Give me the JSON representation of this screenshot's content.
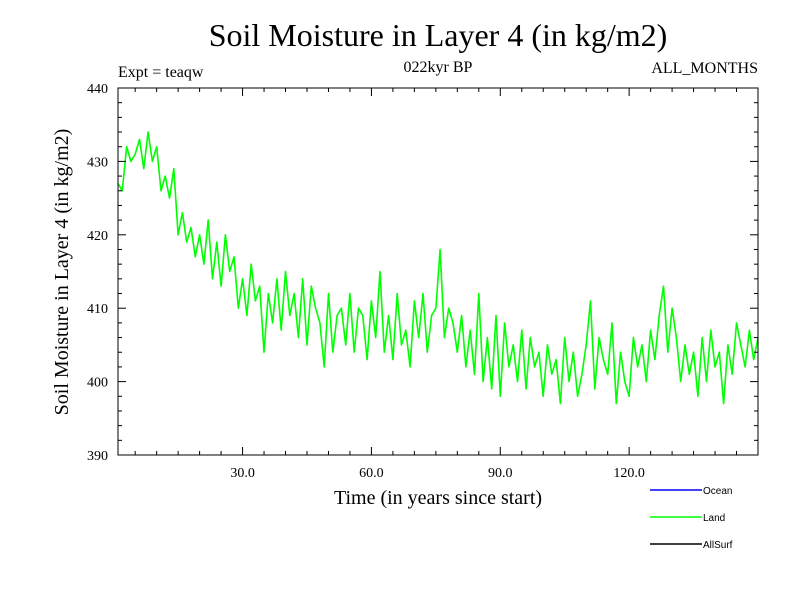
{
  "chart_data": {
    "type": "line",
    "title": "Soil Moisture in Layer 4 (in kg/m2)",
    "subtitle_left": "Expt = teaqw",
    "subtitle_center": "022kyr BP",
    "subtitle_right": "ALL_MONTHS",
    "xlabel": "Time (in years since start)",
    "ylabel": "Soil Moisture in Layer 4 (in kg/m2)",
    "xlim": [
      1,
      150
    ],
    "ylim": [
      390,
      440
    ],
    "x_ticks": [
      30,
      60,
      90,
      120
    ],
    "x_tick_labels": [
      "30.0",
      "60.0",
      "90.0",
      "120.0"
    ],
    "y_ticks": [
      390,
      400,
      410,
      420,
      430,
      440
    ],
    "y_tick_labels": [
      "390",
      "400",
      "410",
      "420",
      "430",
      "440"
    ],
    "legend_position": "bottom-right",
    "legend": [
      {
        "name": "Ocean",
        "color": "#0000ff"
      },
      {
        "name": "Land",
        "color": "#00ff00"
      },
      {
        "name": "AllSurf",
        "color": "#000000"
      }
    ],
    "series": [
      {
        "name": "Land",
        "color": "#00ff00",
        "x": [
          1,
          2,
          3,
          4,
          5,
          6,
          7,
          8,
          9,
          10,
          11,
          12,
          13,
          14,
          15,
          16,
          17,
          18,
          19,
          20,
          21,
          22,
          23,
          24,
          25,
          26,
          27,
          28,
          29,
          30,
          31,
          32,
          33,
          34,
          35,
          36,
          37,
          38,
          39,
          40,
          41,
          42,
          43,
          44,
          45,
          46,
          47,
          48,
          49,
          50,
          51,
          52,
          53,
          54,
          55,
          56,
          57,
          58,
          59,
          60,
          61,
          62,
          63,
          64,
          65,
          66,
          67,
          68,
          69,
          70,
          71,
          72,
          73,
          74,
          75,
          76,
          77,
          78,
          79,
          80,
          81,
          82,
          83,
          84,
          85,
          86,
          87,
          88,
          89,
          90,
          91,
          92,
          93,
          94,
          95,
          96,
          97,
          98,
          99,
          100,
          101,
          102,
          103,
          104,
          105,
          106,
          107,
          108,
          109,
          110,
          111,
          112,
          113,
          114,
          115,
          116,
          117,
          118,
          119,
          120,
          121,
          122,
          123,
          124,
          125,
          126,
          127,
          128,
          129,
          130,
          131,
          132,
          133,
          134,
          135,
          136,
          137,
          138,
          139,
          140,
          141,
          142,
          143,
          144,
          145,
          146,
          147,
          148,
          149,
          150
        ],
        "values": [
          427,
          426,
          432,
          430,
          431,
          433,
          429,
          434,
          430,
          432,
          426,
          428,
          425,
          429,
          420,
          423,
          419,
          421,
          417,
          420,
          416,
          422,
          414,
          419,
          413,
          420,
          415,
          417,
          410,
          414,
          409,
          416,
          411,
          413,
          404,
          412,
          408,
          414,
          407,
          415,
          409,
          412,
          406,
          414,
          405,
          413,
          410,
          408,
          402,
          412,
          404,
          409,
          410,
          405,
          412,
          404,
          410,
          409,
          403,
          411,
          406,
          415,
          404,
          409,
          403,
          412,
          405,
          407,
          402,
          411,
          406,
          412,
          404,
          409,
          410,
          418,
          406,
          410,
          408,
          404,
          409,
          402,
          407,
          401,
          412,
          400,
          406,
          399,
          409,
          398,
          408,
          402,
          405,
          400,
          407,
          399,
          406,
          402,
          404,
          398,
          405,
          401,
          403,
          397,
          406,
          400,
          404,
          398,
          401,
          405,
          411,
          399,
          406,
          403,
          401,
          408,
          397,
          404,
          400,
          398,
          406,
          402,
          405,
          400,
          407,
          403,
          409,
          413,
          404,
          410,
          406,
          400,
          405,
          401,
          404,
          398,
          406,
          400,
          407,
          402,
          404,
          397,
          405,
          401,
          408,
          405,
          402,
          407,
          403,
          406
        ]
      }
    ]
  }
}
